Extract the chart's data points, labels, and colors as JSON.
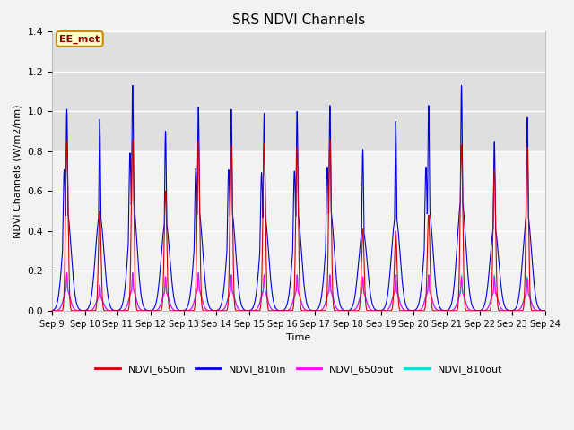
{
  "title": "SRS NDVI Channels",
  "ylabel": "NDVI Channels (W/m2/nm)",
  "xlabel": "Time",
  "ylim": [
    0.0,
    1.4
  ],
  "yticks": [
    0.0,
    0.2,
    0.4,
    0.6,
    0.8,
    1.0,
    1.2,
    1.4
  ],
  "xtick_labels": [
    "Sep 9",
    "Sep 10",
    "Sep 11",
    "Sep 12",
    "Sep 13",
    "Sep 14",
    "Sep 15",
    "Sep 16",
    "Sep 17",
    "Sep 18",
    "Sep 19",
    "Sep 20",
    "Sep 21",
    "Sep 22",
    "Sep 23",
    "Sep 24"
  ],
  "colors": {
    "NDVI_650in": "#cc0000",
    "NDVI_810in": "#0000dd",
    "NDVI_650out": "#ff00ff",
    "NDVI_810out": "#00dddd"
  },
  "annotation_text": "EE_met",
  "annotation_bg": "#ffffcc",
  "annotation_border": "#cc8800",
  "peak_heights_810": [
    1.01,
    0.96,
    1.13,
    0.9,
    1.02,
    1.01,
    0.99,
    1.0,
    1.03,
    0.81,
    0.95,
    1.03,
    1.13,
    0.85,
    0.97
  ],
  "peak_heights_650": [
    0.85,
    0.5,
    0.86,
    0.6,
    0.85,
    0.83,
    0.84,
    0.82,
    0.86,
    0.41,
    0.4,
    0.48,
    0.83,
    0.71,
    0.82
  ],
  "peak_heights_810out": [
    0.18,
    0.13,
    0.19,
    0.17,
    0.19,
    0.18,
    0.18,
    0.18,
    0.18,
    0.17,
    0.18,
    0.18,
    0.18,
    0.18,
    0.17
  ],
  "peak_heights_650out": [
    0.19,
    0.13,
    0.19,
    0.17,
    0.19,
    0.18,
    0.18,
    0.18,
    0.18,
    0.17,
    0.18,
    0.18,
    0.17,
    0.17,
    0.16
  ],
  "n_days": 15
}
